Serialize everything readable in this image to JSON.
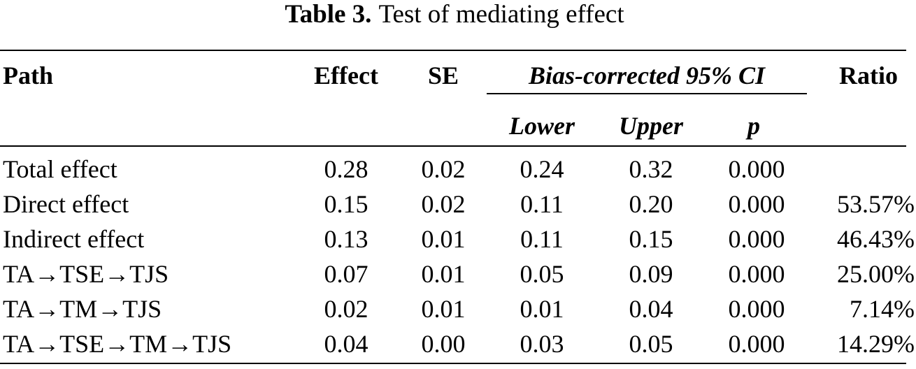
{
  "caption": {
    "label": "Table 3.",
    "title": "Test of mediating effect"
  },
  "headers": {
    "path": "Path",
    "effect": "Effect",
    "se": "SE",
    "ci_group": "Bias-corrected 95% CI",
    "lower": "Lower",
    "upper": "Upper",
    "p": "p",
    "ratio": "Ratio"
  },
  "rows": [
    {
      "path": "Total effect",
      "effect": "0.28",
      "se": "0.02",
      "lower": "0.24",
      "upper": "0.32",
      "p": "0.000",
      "ratio": ""
    },
    {
      "path": "Direct effect",
      "effect": "0.15",
      "se": "0.02",
      "lower": "0.11",
      "upper": "0.20",
      "p": "0.000",
      "ratio": "53.57%"
    },
    {
      "path": "Indirect effect",
      "effect": "0.13",
      "se": "0.01",
      "lower": "0.11",
      "upper": "0.15",
      "p": "0.000",
      "ratio": "46.43%"
    },
    {
      "path": "TA→TSE→TJS",
      "effect": "0.07",
      "se": "0.01",
      "lower": "0.05",
      "upper": "0.09",
      "p": "0.000",
      "ratio": "25.00%"
    },
    {
      "path": "TA→TM→TJS",
      "effect": "0.02",
      "se": "0.01",
      "lower": "0.01",
      "upper": "0.04",
      "p": "0.000",
      "ratio": "7.14%"
    },
    {
      "path": "TA→TSE→TM→TJS",
      "effect": "0.04",
      "se": "0.00",
      "lower": "0.03",
      "upper": "0.05",
      "p": "0.000",
      "ratio": "14.29%"
    }
  ]
}
